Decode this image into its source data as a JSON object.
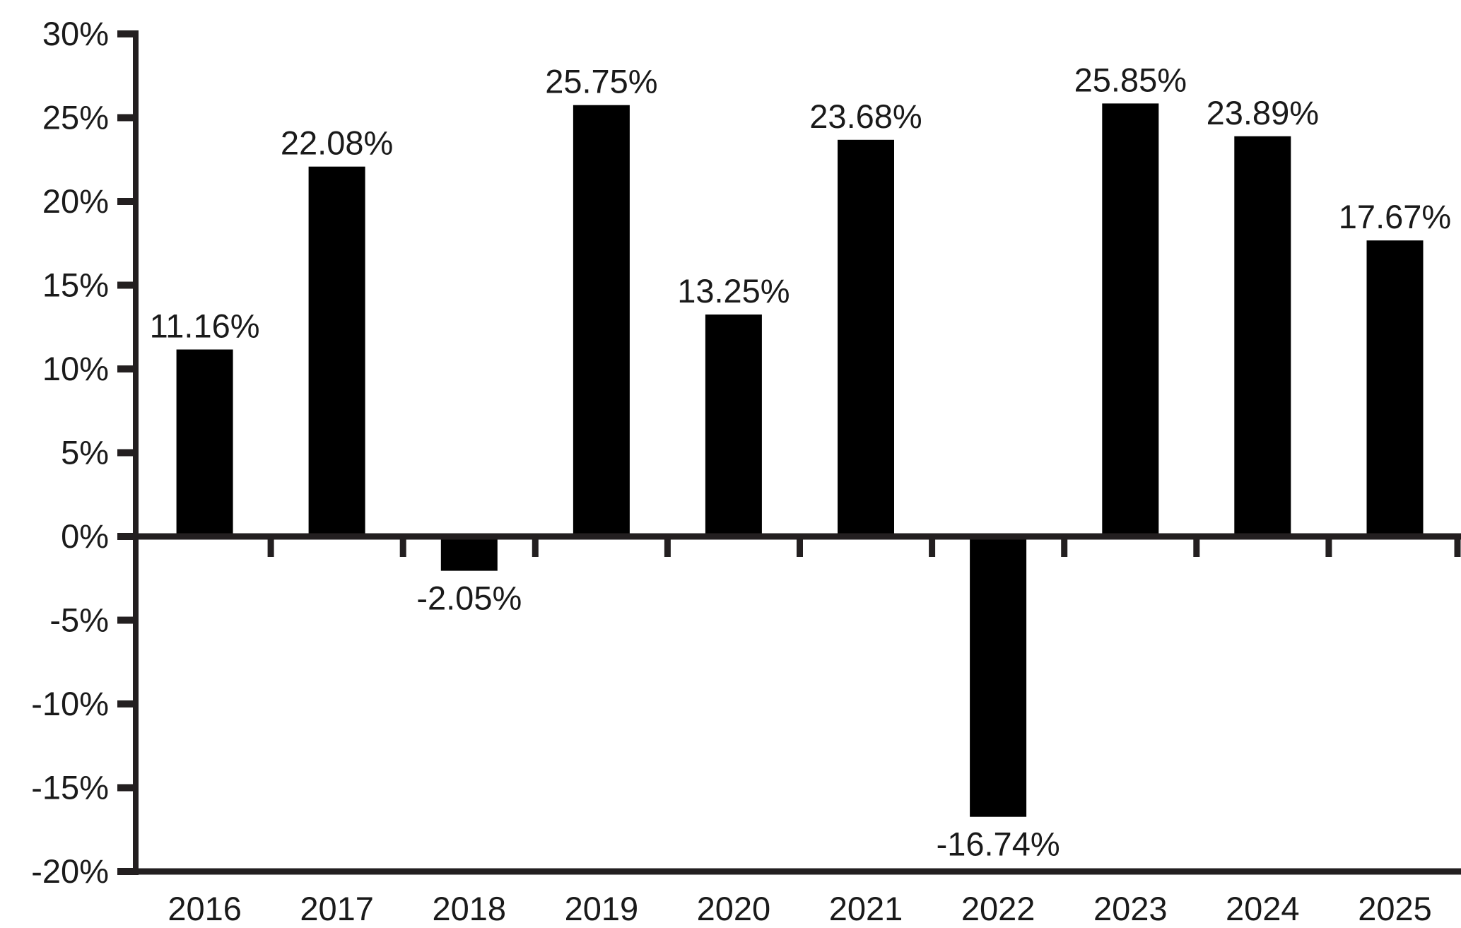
{
  "chart_data": {
    "type": "bar",
    "title": "",
    "xlabel": "",
    "ylabel": "",
    "categories": [
      "2016",
      "2017",
      "2018",
      "2019",
      "2020",
      "2021",
      "2022",
      "2023",
      "2024",
      "2025"
    ],
    "values": [
      11.16,
      22.08,
      -2.05,
      25.75,
      13.25,
      23.68,
      -16.74,
      25.85,
      23.89,
      17.67
    ],
    "data_labels": [
      "11.16%",
      "22.08%",
      "-2.05%",
      "25.75%",
      "13.25%",
      "23.68%",
      "-16.74%",
      "25.85%",
      "23.89%",
      "17.67%"
    ],
    "yticks": [
      {
        "label": "30%",
        "value": 30
      },
      {
        "label": "25%",
        "value": 25
      },
      {
        "label": "20%",
        "value": 20
      },
      {
        "label": "15%",
        "value": 15
      },
      {
        "label": "10%",
        "value": 10
      },
      {
        "label": "5%",
        "value": 5
      },
      {
        "label": "0%",
        "value": 0
      },
      {
        "label": "-5%",
        "value": -5
      },
      {
        "label": "-10%",
        "value": -10
      },
      {
        "label": "-15%",
        "value": -15
      },
      {
        "label": "-20%",
        "value": -20
      }
    ],
    "ylim": [
      -20,
      30
    ],
    "grid": false,
    "legend": null,
    "colors": {
      "bar": "#000000",
      "axis": "#231f20",
      "text": "#1a1a1a",
      "background": "#ffffff"
    }
  }
}
